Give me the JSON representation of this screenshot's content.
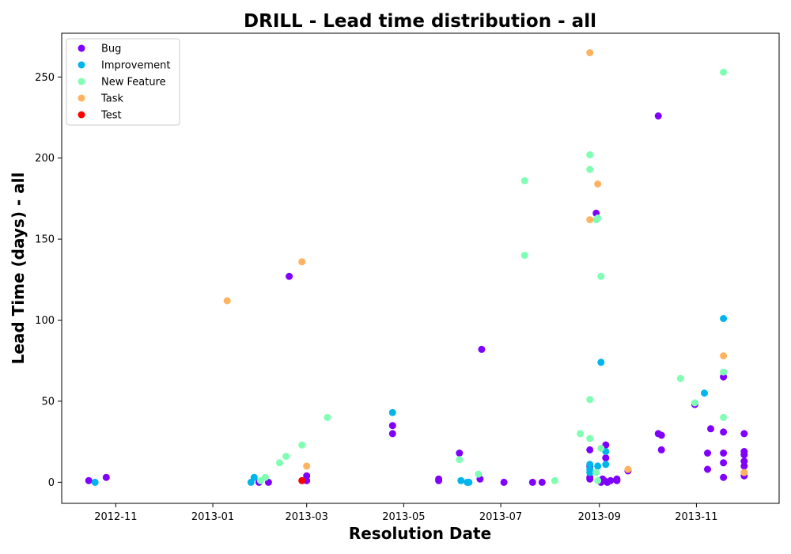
{
  "chart_data": {
    "type": "scatter",
    "title": "DRILL - Lead time distribution - all",
    "xlabel": "Resolution Date",
    "ylabel": "Lead Time (days) - all",
    "xlim": [
      "2012-09-28",
      "2013-12-23"
    ],
    "ylim": [
      -13,
      277
    ],
    "x_ticks": [
      "2012-11-01",
      "2013-01-01",
      "2013-03-01",
      "2013-05-01",
      "2013-07-01",
      "2013-09-01",
      "2013-11-01"
    ],
    "x_tick_labels": [
      "2012-11",
      "2013-01",
      "2013-03",
      "2013-05",
      "2013-07",
      "2013-09",
      "2013-11"
    ],
    "y_ticks": [
      0,
      50,
      100,
      150,
      200,
      250
    ],
    "grid": false,
    "legend_position": "top-left",
    "series": [
      {
        "name": "Bug",
        "color": "#8000ff",
        "points": [
          [
            "2012-10-15",
            1
          ],
          [
            "2012-10-26",
            3
          ],
          [
            "2013-01-30",
            0
          ],
          [
            "2013-02-05",
            0
          ],
          [
            "2013-02-18",
            127
          ],
          [
            "2013-03-01",
            4
          ],
          [
            "2013-03-01",
            1
          ],
          [
            "2013-04-24",
            30
          ],
          [
            "2013-04-24",
            35
          ],
          [
            "2013-05-23",
            2
          ],
          [
            "2013-05-23",
            1
          ],
          [
            "2013-06-05",
            18
          ],
          [
            "2013-06-19",
            82
          ],
          [
            "2013-06-18",
            2
          ],
          [
            "2013-07-03",
            0
          ],
          [
            "2013-07-21",
            0
          ],
          [
            "2013-07-27",
            0
          ],
          [
            "2013-08-26",
            20
          ],
          [
            "2013-08-26",
            10
          ],
          [
            "2013-08-26",
            3
          ],
          [
            "2013-08-26",
            2
          ],
          [
            "2013-08-30",
            166
          ],
          [
            "2013-09-03",
            2
          ],
          [
            "2013-09-05",
            23
          ],
          [
            "2013-09-05",
            15
          ],
          [
            "2013-09-02",
            0
          ],
          [
            "2013-09-04",
            1
          ],
          [
            "2013-09-06",
            0
          ],
          [
            "2013-09-08",
            1
          ],
          [
            "2013-09-12",
            2
          ],
          [
            "2013-09-12",
            1
          ],
          [
            "2013-09-19",
            7
          ],
          [
            "2013-10-08",
            226
          ],
          [
            "2013-10-08",
            30
          ],
          [
            "2013-10-10",
            29
          ],
          [
            "2013-10-10",
            20
          ],
          [
            "2013-10-31",
            48
          ],
          [
            "2013-11-08",
            18
          ],
          [
            "2013-11-08",
            8
          ],
          [
            "2013-11-10",
            33
          ],
          [
            "2013-11-18",
            65
          ],
          [
            "2013-11-18",
            31
          ],
          [
            "2013-11-18",
            18
          ],
          [
            "2013-11-18",
            12
          ],
          [
            "2013-11-18",
            3
          ],
          [
            "2013-12-01",
            30
          ],
          [
            "2013-12-01",
            19
          ],
          [
            "2013-12-01",
            17
          ],
          [
            "2013-12-01",
            13
          ],
          [
            "2013-12-01",
            10
          ],
          [
            "2013-12-01",
            4
          ]
        ]
      },
      {
        "name": "Improvement",
        "color": "#00b5eb",
        "points": [
          [
            "2012-10-19",
            0
          ],
          [
            "2013-01-25",
            0
          ],
          [
            "2013-01-27",
            3
          ],
          [
            "2013-04-24",
            43
          ],
          [
            "2013-06-06",
            1
          ],
          [
            "2013-06-10",
            0
          ],
          [
            "2013-06-11",
            0
          ],
          [
            "2013-08-26",
            11
          ],
          [
            "2013-08-26",
            8
          ],
          [
            "2013-08-26",
            6
          ],
          [
            "2013-08-31",
            10
          ],
          [
            "2013-09-02",
            74
          ],
          [
            "2013-09-05",
            19
          ],
          [
            "2013-09-05",
            11
          ],
          [
            "2013-11-06",
            55
          ],
          [
            "2013-11-18",
            101
          ]
        ]
      },
      {
        "name": "New Feature",
        "color": "#80ffb4",
        "points": [
          [
            "2013-02-03",
            3
          ],
          [
            "2013-01-31",
            1
          ],
          [
            "2013-02-12",
            12
          ],
          [
            "2013-02-16",
            16
          ],
          [
            "2013-02-26",
            23
          ],
          [
            "2013-03-14",
            40
          ],
          [
            "2013-06-05",
            14
          ],
          [
            "2013-06-17",
            5
          ],
          [
            "2013-07-16",
            186
          ],
          [
            "2013-07-16",
            140
          ],
          [
            "2013-08-04",
            1
          ],
          [
            "2013-08-20",
            30
          ],
          [
            "2013-08-26",
            202
          ],
          [
            "2013-08-26",
            193
          ],
          [
            "2013-08-26",
            51
          ],
          [
            "2013-08-26",
            27
          ],
          [
            "2013-08-30",
            162
          ],
          [
            "2013-08-31",
            163
          ],
          [
            "2013-09-02",
            127
          ],
          [
            "2013-09-02",
            21
          ],
          [
            "2013-08-30",
            6
          ],
          [
            "2013-08-31",
            1
          ],
          [
            "2013-10-22",
            64
          ],
          [
            "2013-10-31",
            49
          ],
          [
            "2013-11-18",
            253
          ],
          [
            "2013-11-18",
            68
          ],
          [
            "2013-11-18",
            40
          ]
        ]
      },
      {
        "name": "Task",
        "color": "#ffb360",
        "points": [
          [
            "2013-01-10",
            112
          ],
          [
            "2013-02-26",
            136
          ],
          [
            "2013-03-01",
            10
          ],
          [
            "2013-08-26",
            265
          ],
          [
            "2013-08-26",
            162
          ],
          [
            "2013-08-31",
            184
          ],
          [
            "2013-09-19",
            8
          ],
          [
            "2013-11-18",
            78
          ],
          [
            "2013-12-01",
            6
          ]
        ]
      },
      {
        "name": "Test",
        "color": "#ff0000",
        "points": [
          [
            "2013-02-26",
            1
          ]
        ]
      }
    ]
  }
}
